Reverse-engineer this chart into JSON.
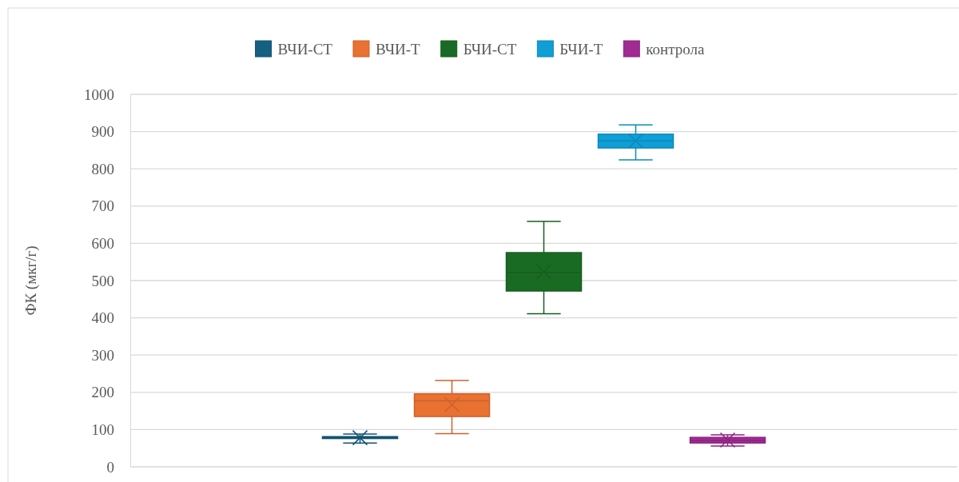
{
  "chart_data": {
    "type": "box",
    "ylabel": "ФК (мкг/г)",
    "categories": [
      null
    ],
    "ylim": [
      0,
      1000
    ],
    "yticks": [
      0,
      100,
      200,
      300,
      400,
      500,
      600,
      700,
      800,
      900,
      1000
    ],
    "grid": "y",
    "legend": "top",
    "series": [
      {
        "name": "ВЧИ-СТ",
        "color": "#156082",
        "boxes": [
          {
            "low": 64,
            "q1": 76,
            "median": 79,
            "q3": 81,
            "high": 88,
            "mean": 78
          }
        ]
      },
      {
        "name": "ВЧИ-Т",
        "color": "#e97132",
        "boxes": [
          {
            "low": 89,
            "q1": 135,
            "median": 177,
            "q3": 196,
            "high": 232,
            "mean": 167
          }
        ]
      },
      {
        "name": "БЧИ-СТ",
        "color": "#196b24",
        "boxes": [
          {
            "low": 411,
            "q1": 472,
            "median": 522,
            "q3": 575,
            "high": 659,
            "mean": 524
          }
        ]
      },
      {
        "name": "БЧИ-Т",
        "color": "#0f9ed5",
        "boxes": [
          {
            "low": 824,
            "q1": 856,
            "median": 875,
            "q3": 893,
            "high": 918,
            "mean": 875
          }
        ]
      },
      {
        "name": "контрола",
        "color": "#a02b93",
        "boxes": [
          {
            "low": 56,
            "q1": 64,
            "median": 71,
            "q3": 79,
            "high": 86,
            "mean": 72
          }
        ]
      }
    ]
  }
}
